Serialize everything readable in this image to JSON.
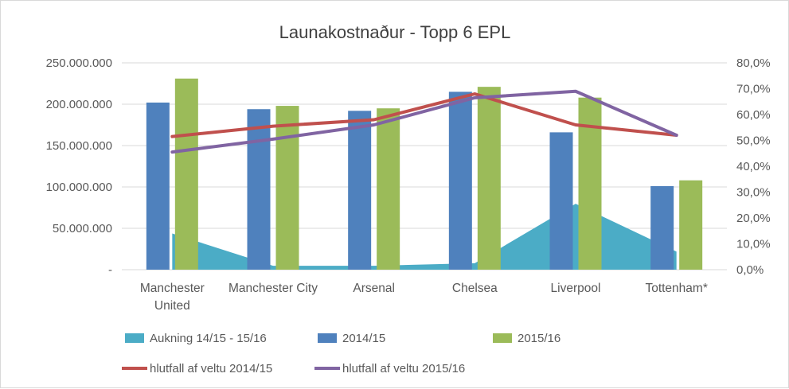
{
  "chart_data": {
    "type": "bar",
    "title": "Launakostnaður - Topp 6 EPL",
    "categories": [
      [
        "Manchester",
        "United"
      ],
      [
        "Manchester City"
      ],
      [
        "Arsenal"
      ],
      [
        "Chelsea"
      ],
      [
        "Liverpool"
      ],
      [
        "Tottenham*"
      ]
    ],
    "y_left": {
      "ylim": [
        0,
        250000000
      ],
      "ticks": [
        "-",
        "50.000.000",
        "100.000.000",
        "150.000.000",
        "200.000.000",
        "250.000.000"
      ]
    },
    "y_right": {
      "ylim": [
        0,
        0.8
      ],
      "ticks": [
        "0,0%",
        "10,0%",
        "20,0%",
        "30,0%",
        "40,0%",
        "50,0%",
        "60,0%",
        "70,0%",
        "80,0%"
      ]
    },
    "series": [
      {
        "name": "Aukning 14/15 - 15/16",
        "type": "area",
        "axis": "right",
        "color": "#4bacc6",
        "values": [
          0.14,
          0.015,
          0.015,
          0.025,
          0.255,
          0.07
        ]
      },
      {
        "name": "2014/15",
        "type": "bar",
        "axis": "left",
        "color": "#4f81bd",
        "values": [
          202000000,
          194000000,
          192000000,
          215000000,
          166000000,
          101000000
        ]
      },
      {
        "name": "2015/16",
        "type": "bar",
        "axis": "left",
        "color": "#9bbb59",
        "values": [
          231000000,
          198000000,
          195000000,
          221000000,
          208000000,
          108000000
        ]
      },
      {
        "name": "hlutfall af veltu 2014/15",
        "type": "line",
        "axis": "right",
        "color": "#c0504d",
        "values": [
          0.515,
          0.555,
          0.58,
          0.68,
          0.56,
          0.52
        ]
      },
      {
        "name": "hlutfall af veltu 2015/16",
        "type": "line",
        "axis": "right",
        "color": "#8064a2",
        "values": [
          0.455,
          0.505,
          0.56,
          0.665,
          0.69,
          0.52
        ]
      }
    ],
    "legend": "bottom",
    "grid": true
  }
}
